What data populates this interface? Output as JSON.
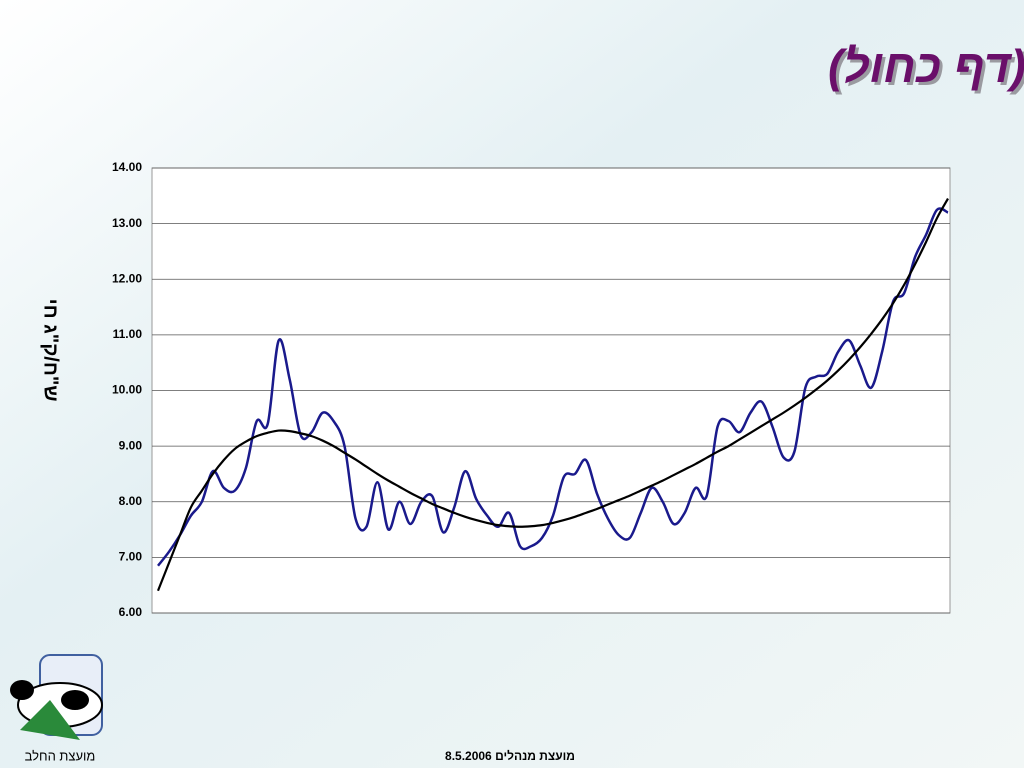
{
  "chart_data": {
    "type": "line",
    "title": "מחירי עגלים ש/ל (דף כחול)",
    "y_label": "ש\"ח/ק\"ג חי",
    "ylim": [
      6,
      14
    ],
    "yticks": [
      {
        "value": 6,
        "label": "6.00"
      },
      {
        "value": 7,
        "label": "7.00"
      },
      {
        "value": 8,
        "label": "8.00"
      },
      {
        "value": 9,
        "label": "9.00"
      },
      {
        "value": 10,
        "label": "10.00"
      },
      {
        "value": 11,
        "label": "11.00"
      },
      {
        "value": 12,
        "label": "12.00"
      },
      {
        "value": 13,
        "label": "13.00"
      },
      {
        "value": 14,
        "label": "14.00"
      }
    ],
    "grid": true,
    "series": [
      {
        "color": "#1a1a8c",
        "values": [
          6.85,
          7.1,
          7.4,
          7.75,
          8.0,
          8.55,
          8.25,
          8.2,
          8.6,
          9.45,
          9.4,
          10.9,
          10.2,
          9.2,
          9.25,
          9.6,
          9.45,
          9.0,
          7.7,
          7.55,
          8.35,
          7.5,
          8.0,
          7.6,
          8.0,
          8.1,
          7.45,
          7.9,
          8.55,
          8.05,
          7.75,
          7.55,
          7.8,
          7.2,
          7.2,
          7.35,
          7.75,
          8.45,
          8.5,
          8.75,
          8.15,
          7.7,
          7.4,
          7.35,
          7.8,
          8.25,
          8.0,
          7.6,
          7.8,
          8.25,
          8.1,
          9.35,
          9.45,
          9.25,
          9.6,
          9.8,
          9.35,
          8.8,
          8.9,
          10.05,
          10.25,
          10.3,
          10.7,
          10.9,
          10.45,
          10.05,
          10.7,
          11.6,
          11.75,
          12.4,
          12.8,
          13.25,
          13.2
        ]
      },
      {
        "color": "#000000",
        "values": [
          6.4,
          6.9,
          7.4,
          7.9,
          8.2,
          8.5,
          8.75,
          8.95,
          9.08,
          9.18,
          9.24,
          9.28,
          9.27,
          9.23,
          9.18,
          9.1,
          9.0,
          8.88,
          8.76,
          8.63,
          8.5,
          8.38,
          8.27,
          8.16,
          8.06,
          7.96,
          7.88,
          7.8,
          7.73,
          7.67,
          7.62,
          7.58,
          7.56,
          7.55,
          7.56,
          7.58,
          7.62,
          7.67,
          7.73,
          7.8,
          7.87,
          7.95,
          8.03,
          8.11,
          8.2,
          8.29,
          8.38,
          8.48,
          8.58,
          8.68,
          8.79,
          8.9,
          9.0,
          9.12,
          9.24,
          9.36,
          9.48,
          9.6,
          9.73,
          9.87,
          10.02,
          10.18,
          10.36,
          10.56,
          10.78,
          11.02,
          11.28,
          11.57,
          11.9,
          12.27,
          12.67,
          13.1,
          13.45
        ]
      }
    ]
  },
  "footer": "מועצת מנהלים 8.5.2006",
  "logo_text": "מועצת החלב"
}
